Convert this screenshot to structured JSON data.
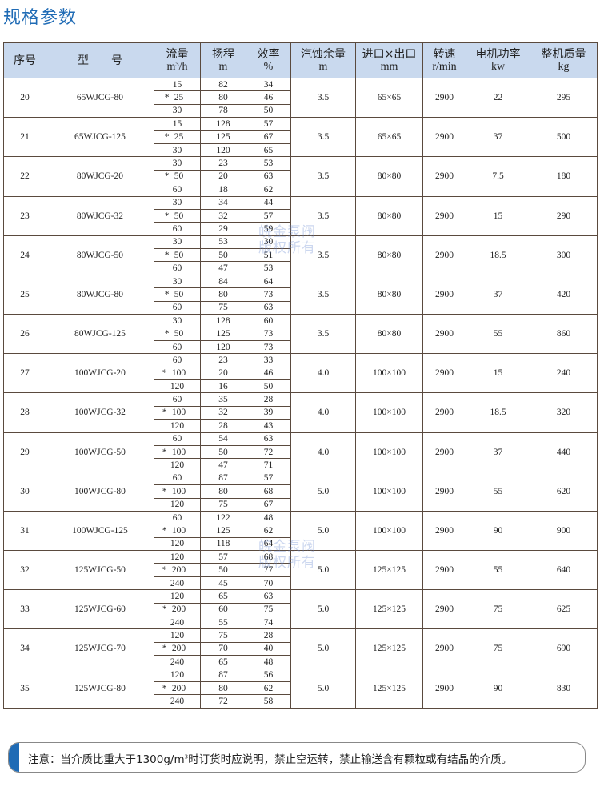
{
  "title": "规格参数",
  "headers": [
    {
      "label": "序号",
      "unit": ""
    },
    {
      "label": "型　　号",
      "unit": ""
    },
    {
      "label": "流量",
      "unit": "m³/h"
    },
    {
      "label": "扬程",
      "unit": "m"
    },
    {
      "label": "效率",
      "unit": "%"
    },
    {
      "label": "汽蚀余量",
      "unit": "m"
    },
    {
      "label": "进口×出口",
      "unit": "mm"
    },
    {
      "label": "转速",
      "unit": "r/min"
    },
    {
      "label": "电机功率",
      "unit": "kw"
    },
    {
      "label": "整机质量",
      "unit": "kg"
    }
  ],
  "star": "*",
  "rows": [
    {
      "no": "20",
      "model": "65WJCG-80",
      "flow": [
        "15",
        "25",
        "30"
      ],
      "head": [
        "82",
        "80",
        "78"
      ],
      "eff": [
        "34",
        "46",
        "50"
      ],
      "npsh": "3.5",
      "io": "65×65",
      "speed": "2900",
      "power": "22",
      "mass": "295"
    },
    {
      "no": "21",
      "model": "65WJCG-125",
      "flow": [
        "15",
        "25",
        "30"
      ],
      "head": [
        "128",
        "125",
        "120"
      ],
      "eff": [
        "57",
        "67",
        "65"
      ],
      "npsh": "3.5",
      "io": "65×65",
      "speed": "2900",
      "power": "37",
      "mass": "500"
    },
    {
      "no": "22",
      "model": "80WJCG-20",
      "flow": [
        "30",
        "50",
        "60"
      ],
      "head": [
        "23",
        "20",
        "18"
      ],
      "eff": [
        "53",
        "63",
        "62"
      ],
      "npsh": "3.5",
      "io": "80×80",
      "speed": "2900",
      "power": "7.5",
      "mass": "180"
    },
    {
      "no": "23",
      "model": "80WJCG-32",
      "flow": [
        "30",
        "50",
        "60"
      ],
      "head": [
        "34",
        "32",
        "29"
      ],
      "eff": [
        "44",
        "57",
        "59"
      ],
      "npsh": "3.5",
      "io": "80×80",
      "speed": "2900",
      "power": "15",
      "mass": "290"
    },
    {
      "no": "24",
      "model": "80WJCG-50",
      "flow": [
        "30",
        "50",
        "60"
      ],
      "head": [
        "53",
        "50",
        "47"
      ],
      "eff": [
        "30",
        "51",
        "53"
      ],
      "npsh": "3.5",
      "io": "80×80",
      "speed": "2900",
      "power": "18.5",
      "mass": "300"
    },
    {
      "no": "25",
      "model": "80WJCG-80",
      "flow": [
        "30",
        "50",
        "60"
      ],
      "head": [
        "84",
        "80",
        "75"
      ],
      "eff": [
        "64",
        "73",
        "63"
      ],
      "npsh": "3.5",
      "io": "80×80",
      "speed": "2900",
      "power": "37",
      "mass": "420"
    },
    {
      "no": "26",
      "model": "80WJCG-125",
      "flow": [
        "30",
        "50",
        "60"
      ],
      "head": [
        "128",
        "125",
        "120"
      ],
      "eff": [
        "60",
        "73",
        "73"
      ],
      "npsh": "3.5",
      "io": "80×80",
      "speed": "2900",
      "power": "55",
      "mass": "860"
    },
    {
      "no": "27",
      "model": "100WJCG-20",
      "flow": [
        "60",
        "100",
        "120"
      ],
      "head": [
        "23",
        "20",
        "16"
      ],
      "eff": [
        "33",
        "46",
        "50"
      ],
      "npsh": "4.0",
      "io": "100×100",
      "speed": "2900",
      "power": "15",
      "mass": "240"
    },
    {
      "no": "28",
      "model": "100WJCG-32",
      "flow": [
        "60",
        "100",
        "120"
      ],
      "head": [
        "35",
        "32",
        "28"
      ],
      "eff": [
        "28",
        "39",
        "43"
      ],
      "npsh": "4.0",
      "io": "100×100",
      "speed": "2900",
      "power": "18.5",
      "mass": "320"
    },
    {
      "no": "29",
      "model": "100WJCG-50",
      "flow": [
        "60",
        "100",
        "120"
      ],
      "head": [
        "54",
        "50",
        "47"
      ],
      "eff": [
        "63",
        "72",
        "71"
      ],
      "npsh": "4.0",
      "io": "100×100",
      "speed": "2900",
      "power": "37",
      "mass": "440"
    },
    {
      "no": "30",
      "model": "100WJCG-80",
      "flow": [
        "60",
        "100",
        "120"
      ],
      "head": [
        "87",
        "80",
        "75"
      ],
      "eff": [
        "57",
        "68",
        "67"
      ],
      "npsh": "5.0",
      "io": "100×100",
      "speed": "2900",
      "power": "55",
      "mass": "620"
    },
    {
      "no": "31",
      "model": "100WJCG-125",
      "flow": [
        "60",
        "100",
        "120"
      ],
      "head": [
        "122",
        "125",
        "118"
      ],
      "eff": [
        "48",
        "62",
        "64"
      ],
      "npsh": "5.0",
      "io": "100×100",
      "speed": "2900",
      "power": "90",
      "mass": "900"
    },
    {
      "no": "32",
      "model": "125WJCG-50",
      "flow": [
        "120",
        "200",
        "240"
      ],
      "head": [
        "57",
        "50",
        "45"
      ],
      "eff": [
        "68",
        "77",
        "70"
      ],
      "npsh": "5.0",
      "io": "125×125",
      "speed": "2900",
      "power": "55",
      "mass": "640"
    },
    {
      "no": "33",
      "model": "125WJCG-60",
      "flow": [
        "120",
        "200",
        "240"
      ],
      "head": [
        "65",
        "60",
        "55"
      ],
      "eff": [
        "63",
        "75",
        "74"
      ],
      "npsh": "5.0",
      "io": "125×125",
      "speed": "2900",
      "power": "75",
      "mass": "625"
    },
    {
      "no": "34",
      "model": "125WJCG-70",
      "flow": [
        "120",
        "200",
        "240"
      ],
      "head": [
        "75",
        "70",
        "65"
      ],
      "eff": [
        "28",
        "40",
        "48"
      ],
      "npsh": "5.0",
      "io": "125×125",
      "speed": "2900",
      "power": "75",
      "mass": "690"
    },
    {
      "no": "35",
      "model": "125WJCG-80",
      "flow": [
        "120",
        "200",
        "240"
      ],
      "head": [
        "87",
        "80",
        "72"
      ],
      "eff": [
        "56",
        "62",
        "58"
      ],
      "npsh": "5.0",
      "io": "125×125",
      "speed": "2900",
      "power": "90",
      "mass": "830"
    }
  ],
  "watermark": {
    "line1": "皖金泵阀",
    "line2": "版权所有"
  },
  "note": {
    "before": "注意：当介质比重大于1300g/m",
    "sup": "3",
    "after": "时订货时应说明，禁止空运转，禁止输送含有颗粒或有结晶的介质。"
  },
  "colors": {
    "accent": "#1f6bb5",
    "header_bg": "#c9d9ee"
  }
}
